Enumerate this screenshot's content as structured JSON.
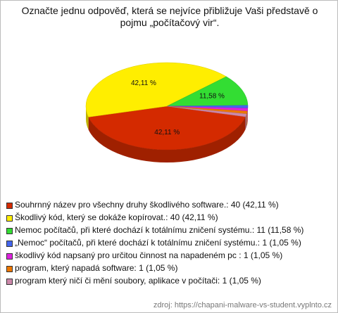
{
  "chart_data": {
    "type": "pie3d",
    "title": "Označte jednu odpověď, která se nejvíce přibližuje Vaši představě o pojmu „počítačový vir“.",
    "categories": [
      "Souhrnný název pro všechny druhy škodlivého software.: 40 (42,11 %)",
      "Škodlivý kód, který se dokáže kopírovat.: 40 (42,11 %)",
      "Nemoc počítačů, při které dochází k totálnímu zničení systému.: 11 (11,58 %)",
      "„Nemoc“ počítačů, při které dochází k totálnímu zničení systému.: 1 (1,05 %)",
      "škodlivý kód napsaný pro určitou činnost na napadeném pc : 1 (1,05 %)",
      "program, který napadá software: 1 (1,05 %)",
      "program který ničí či mění soubory, aplikace v počítači: 1 (1,05 %)"
    ],
    "values": [
      42.11,
      42.11,
      11.58,
      1.05,
      1.05,
      1.05,
      1.05
    ],
    "value_labels": [
      "42,11 %",
      "42,11 %",
      "11,58 %",
      null,
      null,
      null,
      null
    ],
    "colors": [
      "#d42a00",
      "#ffee00",
      "#33dd33",
      "#4466ee",
      "#dd22dd",
      "#ee7700",
      "#cc88aa"
    ],
    "source": "zdroj: https://chapani-malware-vs-student.vyplnto.cz"
  }
}
